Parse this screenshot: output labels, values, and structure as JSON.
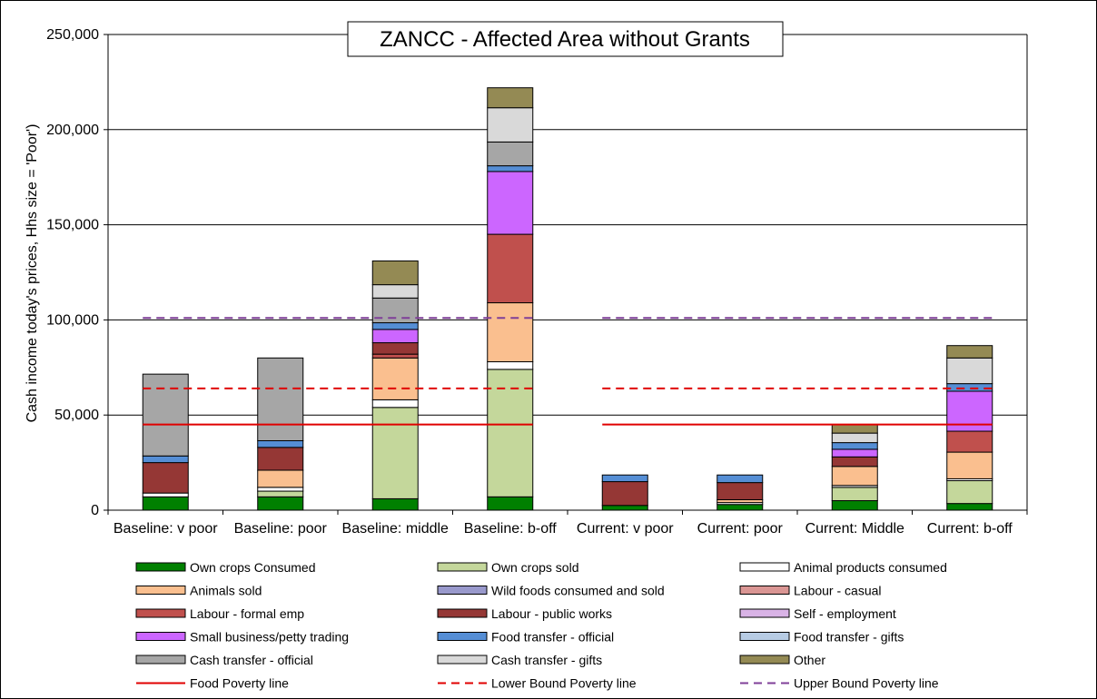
{
  "chart_data": {
    "type": "bar",
    "stacked": true,
    "title": "ZANCC - Affected Area without Grants",
    "ylabel": "Cash income today's prices, Hhs size = 'Poor')",
    "xlabel": "",
    "ylim": [
      0,
      250000
    ],
    "yticks": [
      "0",
      "50,000",
      "100,000",
      "150,000",
      "200,000",
      "250,000"
    ],
    "ytick_values": [
      0,
      50000,
      100000,
      150000,
      200000,
      250000
    ],
    "grid": true,
    "legend_position": "bottom",
    "categories": [
      "Baseline: v poor",
      "Baseline: poor",
      "Baseline: middle",
      "Baseline: b-off",
      "Current: v poor",
      "Current: poor",
      "Current: Middle",
      "Current: b-off"
    ],
    "series": [
      {
        "name": "Own crops Consumed",
        "color": "#008000",
        "values": [
          7000,
          7000,
          6000,
          7000,
          2500,
          3000,
          5000,
          3500
        ]
      },
      {
        "name": "Own crops sold",
        "color": "#c4d79b",
        "values": [
          0,
          3000,
          48000,
          67000,
          0,
          0,
          7000,
          12000
        ]
      },
      {
        "name": "Animal products consumed",
        "color": "#ffffff",
        "values": [
          2000,
          2000,
          4000,
          4000,
          0,
          1000,
          1000,
          1000
        ]
      },
      {
        "name": "Animals sold",
        "color": "#fabf8f",
        "values": [
          0,
          9000,
          22000,
          31000,
          0,
          1500,
          10000,
          14000
        ]
      },
      {
        "name": "Wild foods consumed and sold",
        "color": "#9999cc",
        "values": [
          0,
          0,
          0,
          0,
          0,
          0,
          0,
          0
        ]
      },
      {
        "name": "Labour - casual",
        "color": "#da9694",
        "values": [
          0,
          0,
          0,
          0,
          0,
          0,
          0,
          0
        ]
      },
      {
        "name": "Labour - formal emp",
        "color": "#c0504d",
        "values": [
          0,
          0,
          2000,
          36000,
          0,
          0,
          0,
          11000
        ]
      },
      {
        "name": "Labour - public works",
        "color": "#953735",
        "values": [
          16000,
          12000,
          6000,
          0,
          12500,
          9000,
          5000,
          0
        ]
      },
      {
        "name": "Self - employment",
        "color": "#d9b3e6",
        "values": [
          0,
          0,
          0,
          0,
          0,
          0,
          0,
          0
        ]
      },
      {
        "name": "Small business/petty trading",
        "color": "#cc66ff",
        "values": [
          0,
          0,
          7000,
          33000,
          0,
          0,
          4000,
          21000
        ]
      },
      {
        "name": "Food transfer - official",
        "color": "#558ed5",
        "values": [
          3500,
          3500,
          3500,
          3000,
          3500,
          4000,
          3500,
          4000
        ]
      },
      {
        "name": "Food transfer - gifts",
        "color": "#b7cce4",
        "values": [
          0,
          0,
          0,
          0,
          0,
          0,
          0,
          0
        ]
      },
      {
        "name": "Cash transfer - official",
        "color": "#a6a6a6",
        "values": [
          43000,
          43500,
          13000,
          12500,
          0,
          0,
          0,
          0
        ]
      },
      {
        "name": "Cash transfer - gifts",
        "color": "#d9d9d9",
        "values": [
          0,
          0,
          7000,
          18000,
          0,
          0,
          5000,
          13500
        ]
      },
      {
        "name": "Other",
        "color": "#948a54",
        "values": [
          0,
          0,
          12500,
          10500,
          0,
          0,
          4500,
          6500
        ]
      }
    ],
    "lines": [
      {
        "name": "Food Poverty line",
        "color": "#e00000",
        "style": "solid",
        "value": 45000,
        "groups": [
          [
            0,
            3
          ],
          [
            4,
            7
          ]
        ]
      },
      {
        "name": "Lower Bound Poverty line",
        "color": "#e00000",
        "style": "dashed",
        "value": 64000,
        "groups": [
          [
            0,
            3
          ],
          [
            4,
            7
          ]
        ]
      },
      {
        "name": "Upper Bound Poverty line",
        "color": "#7f3f98",
        "style": "dashed",
        "value": 101000,
        "groups": [
          [
            0,
            3
          ],
          [
            4,
            7
          ]
        ]
      }
    ]
  }
}
